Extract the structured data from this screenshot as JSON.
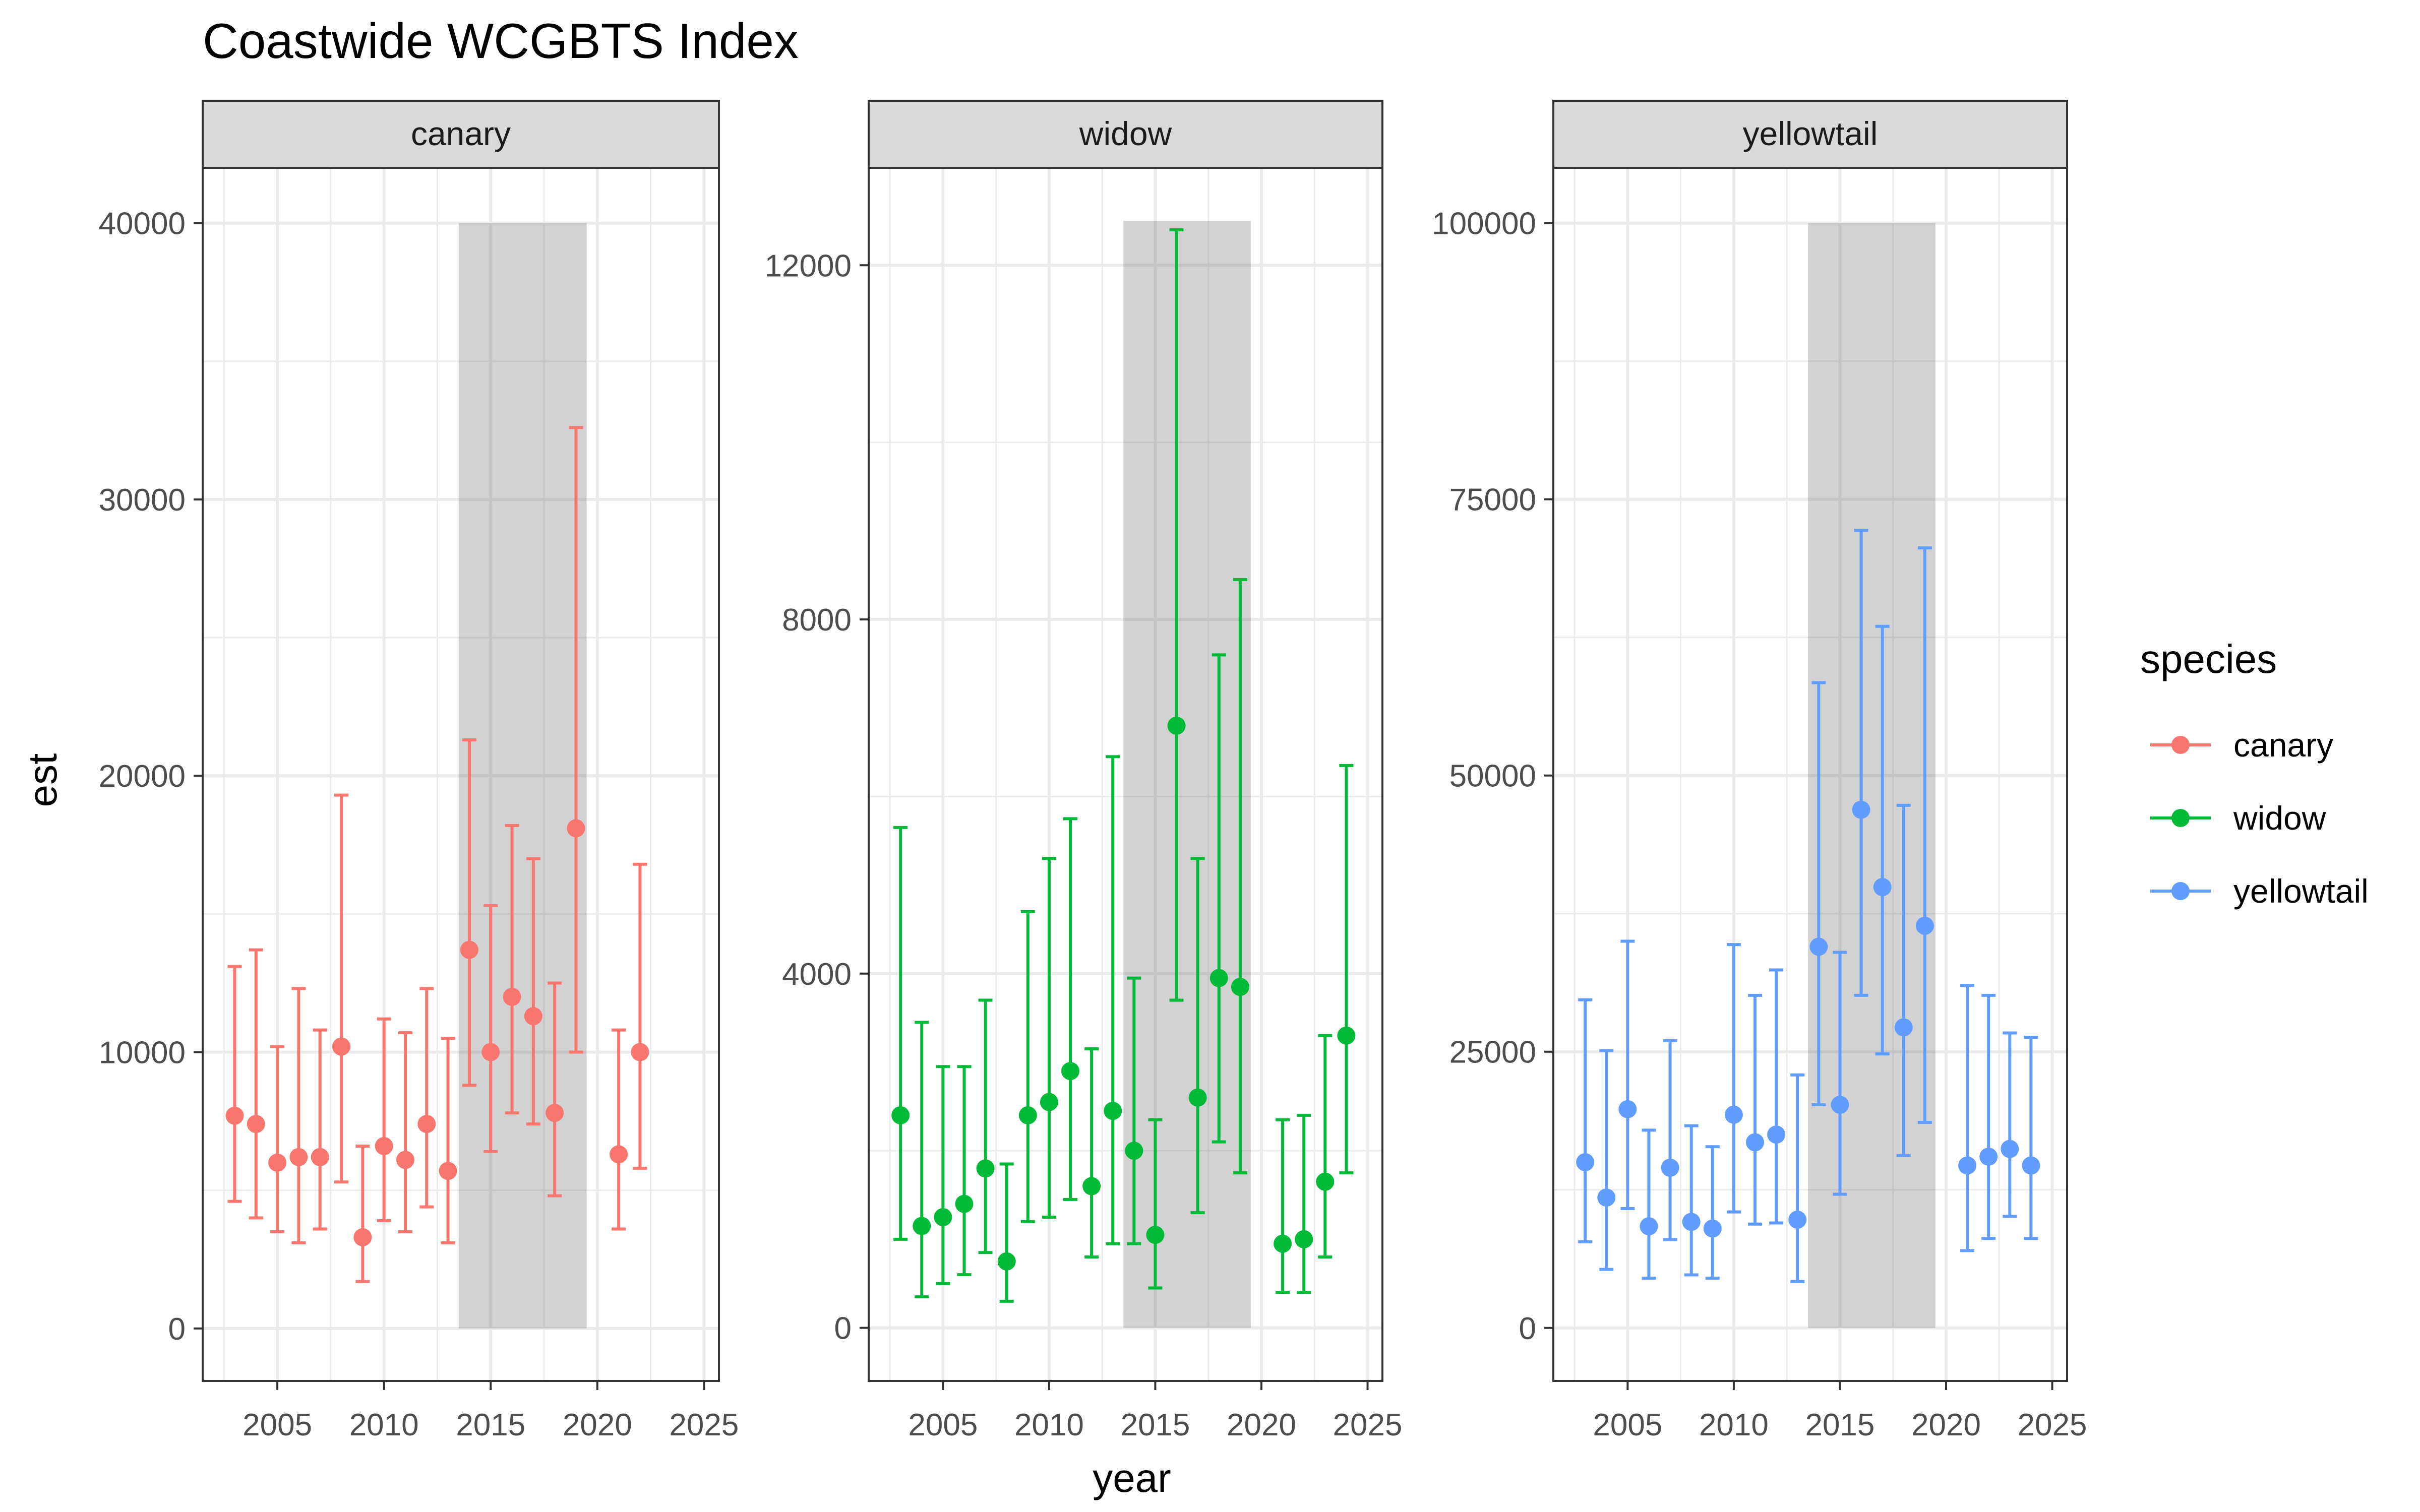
{
  "chart_data": {
    "type": "scatter",
    "title": "Coastwide WCGBTS Index",
    "xlabel": "year",
    "ylabel": "est",
    "grid": true,
    "legend": {
      "title": "species",
      "position": "right"
    },
    "x_ticks": [
      2005,
      2010,
      2015,
      2020,
      2025
    ],
    "xlim": [
      2001.5,
      2025.7
    ],
    "shaded_region": {
      "x": [
        2013.5,
        2019.5
      ]
    },
    "panels": [
      {
        "name": "canary",
        "color": "#F8766D",
        "ylim": [
          -1900,
          42000
        ],
        "y_ticks": [
          0,
          10000,
          20000,
          30000,
          40000
        ],
        "shade_y": [
          0,
          40000
        ],
        "x": [
          2003,
          2004,
          2005,
          2006,
          2007,
          2008,
          2009,
          2010,
          2011,
          2012,
          2013,
          2014,
          2015,
          2016,
          2017,
          2018,
          2019,
          2021,
          2022
        ],
        "est": [
          7700,
          7400,
          6000,
          6200,
          6200,
          10200,
          3300,
          6600,
          6100,
          7400,
          5700,
          13700,
          10000,
          12000,
          11300,
          7800,
          18100,
          6300,
          10000
        ],
        "lower": [
          4600,
          4000,
          3500,
          3100,
          3600,
          5300,
          1700,
          3900,
          3500,
          4400,
          3100,
          8800,
          6400,
          7800,
          7400,
          4800,
          10000,
          3600,
          5800
        ],
        "upper": [
          13100,
          13700,
          10200,
          12300,
          10800,
          19300,
          6600,
          11200,
          10700,
          12300,
          10500,
          21300,
          15300,
          18200,
          17000,
          12500,
          32600,
          10800,
          16800
        ]
      },
      {
        "name": "widow",
        "color": "#00BA38",
        "ylim": [
          -600,
          13100
        ],
        "y_ticks": [
          0,
          4000,
          8000,
          12000
        ],
        "shade_y": [
          0,
          12500
        ],
        "x": [
          2003,
          2004,
          2005,
          2006,
          2007,
          2008,
          2009,
          2010,
          2011,
          2012,
          2013,
          2014,
          2015,
          2016,
          2017,
          2018,
          2019,
          2021,
          2022,
          2023,
          2024
        ],
        "est": [
          2400,
          1150,
          1250,
          1400,
          1800,
          750,
          2400,
          2550,
          2900,
          1600,
          2450,
          2000,
          1050,
          6800,
          2600,
          3950,
          3850,
          950,
          1000,
          1650,
          3300
        ],
        "lower": [
          1000,
          350,
          500,
          600,
          850,
          300,
          1200,
          1250,
          1450,
          800,
          950,
          950,
          450,
          3700,
          1300,
          2100,
          1750,
          400,
          400,
          800,
          1750
        ],
        "upper": [
          5650,
          3450,
          2950,
          2950,
          3700,
          1850,
          4700,
          5300,
          5750,
          3150,
          6450,
          3950,
          2350,
          12400,
          5300,
          7600,
          8450,
          2350,
          2400,
          3300,
          6350
        ]
      },
      {
        "name": "yellowtail",
        "color": "#619CFF",
        "ylim": [
          -4800,
          105000
        ],
        "y_ticks": [
          0,
          25000,
          50000,
          75000,
          100000
        ],
        "shade_y": [
          0,
          100000
        ],
        "x": [
          2003,
          2004,
          2005,
          2006,
          2007,
          2008,
          2009,
          2010,
          2011,
          2012,
          2013,
          2014,
          2015,
          2016,
          2017,
          2018,
          2019,
          2021,
          2022,
          2023,
          2024
        ],
        "est": [
          15000,
          11800,
          19800,
          9200,
          14500,
          9600,
          9000,
          19300,
          16800,
          17500,
          9800,
          34500,
          20200,
          46900,
          39900,
          27200,
          36400,
          14700,
          15500,
          16200,
          14700
        ],
        "lower": [
          7800,
          5300,
          10800,
          4500,
          8000,
          4800,
          4500,
          10500,
          9400,
          9500,
          4200,
          20200,
          12100,
          30100,
          24800,
          15600,
          18600,
          7000,
          8100,
          10100,
          8100
        ],
        "upper": [
          29700,
          25100,
          35000,
          17900,
          26000,
          18300,
          16400,
          34700,
          30100,
          32400,
          22900,
          58400,
          34000,
          72200,
          63500,
          47300,
          70600,
          31000,
          30100,
          26700,
          26300
        ]
      }
    ]
  }
}
